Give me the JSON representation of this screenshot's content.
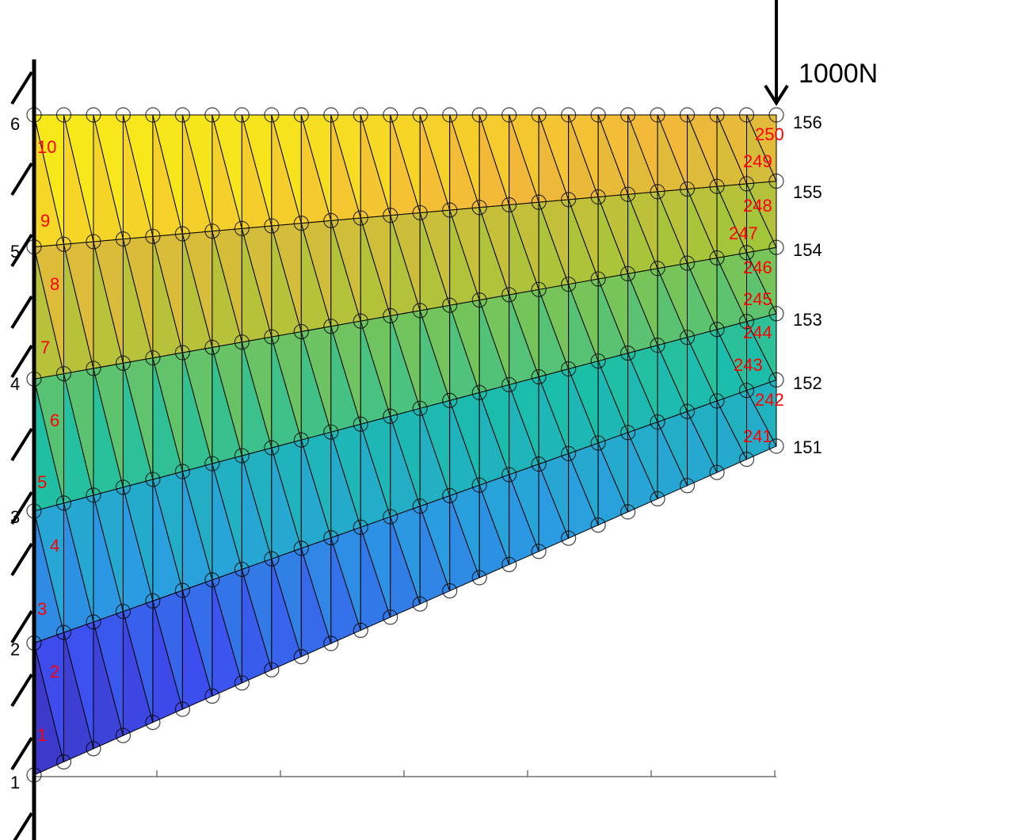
{
  "load": {
    "label": "1000N"
  },
  "node_labels_left": [
    "1",
    "2",
    "3",
    "4",
    "5",
    "6"
  ],
  "node_labels_right": [
    "151",
    "152",
    "153",
    "154",
    "155",
    "156"
  ],
  "element_labels_left": [
    "1",
    "2",
    "3",
    "4",
    "5",
    "6",
    "7",
    "8",
    "9",
    "10"
  ],
  "element_labels_right": [
    "241",
    "242",
    "243",
    "244",
    "245",
    "246",
    "247",
    "248",
    "249",
    "250"
  ],
  "mesh": {
    "columns": 26,
    "rows": 6,
    "elements": 250,
    "nodes": 156
  },
  "colors": {
    "element_label": "#ff0000",
    "edge": "#000000",
    "node_marker": "#000000",
    "colormap": [
      "#3d26a8",
      "#3d4ff0",
      "#2a9fe0",
      "#1bbfa8",
      "#9cc63a",
      "#f3b83a",
      "#f9fb0e"
    ]
  }
}
